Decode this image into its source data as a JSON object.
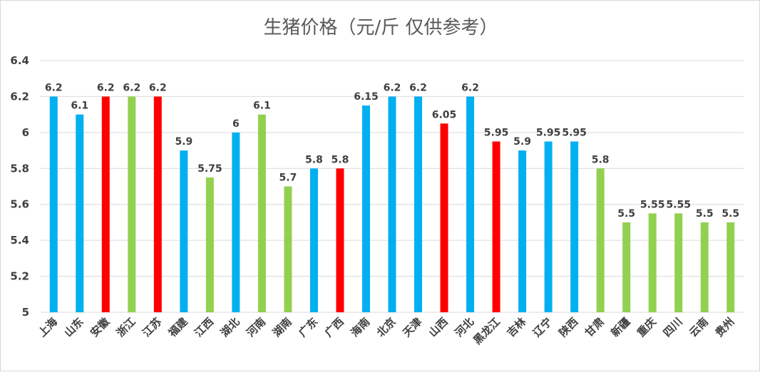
{
  "chart_data": {
    "type": "bar",
    "title": "生猪价格（元/斤 仅供参考）",
    "xlabel": "",
    "ylabel": "",
    "ylim": [
      5,
      6.4
    ],
    "yticks": [
      "5",
      "5.2",
      "5.4",
      "5.6",
      "5.8",
      "6",
      "6.2",
      "6.4"
    ],
    "grid": true,
    "legend": "none",
    "categories": [
      "上海",
      "山东",
      "安徽",
      "浙江",
      "江苏",
      "福建",
      "江西",
      "湖北",
      "河南",
      "湖南",
      "广东",
      "广西",
      "海南",
      "北京",
      "天津",
      "山西",
      "河北",
      "黑龙江",
      "吉林",
      "辽宁",
      "陕西",
      "甘肃",
      "新疆",
      "重庆",
      "四川",
      "云南",
      "贵州"
    ],
    "values": [
      6.2,
      6.1,
      6.2,
      6.2,
      6.2,
      5.9,
      5.75,
      6,
      6.1,
      5.7,
      5.8,
      5.8,
      6.15,
      6.2,
      6.2,
      6.05,
      6.2,
      5.95,
      5.9,
      5.95,
      5.95,
      5.8,
      5.5,
      5.55,
      5.55,
      5.5,
      5.5
    ],
    "value_labels": [
      "6.2",
      "6.1",
      "6.2",
      "6.2",
      "6.2",
      "5.9",
      "5.75",
      "6",
      "6.1",
      "5.7",
      "5.8",
      "5.8",
      "6.15",
      "6.2",
      "6.2",
      "6.05",
      "6.2",
      "5.95",
      "5.9",
      "5.95",
      "5.95",
      "5.8",
      "5.5",
      "5.55",
      "5.55",
      "5.5",
      "5.5"
    ],
    "bar_colors": [
      "#00b0f0",
      "#00b0f0",
      "#ff0000",
      "#92d050",
      "#ff0000",
      "#00b0f0",
      "#92d050",
      "#00b0f0",
      "#92d050",
      "#92d050",
      "#00b0f0",
      "#ff0000",
      "#00b0f0",
      "#00b0f0",
      "#00b0f0",
      "#ff0000",
      "#00b0f0",
      "#ff0000",
      "#00b0f0",
      "#00b0f0",
      "#00b0f0",
      "#92d050",
      "#92d050",
      "#92d050",
      "#92d050",
      "#92d050",
      "#92d050"
    ]
  }
}
